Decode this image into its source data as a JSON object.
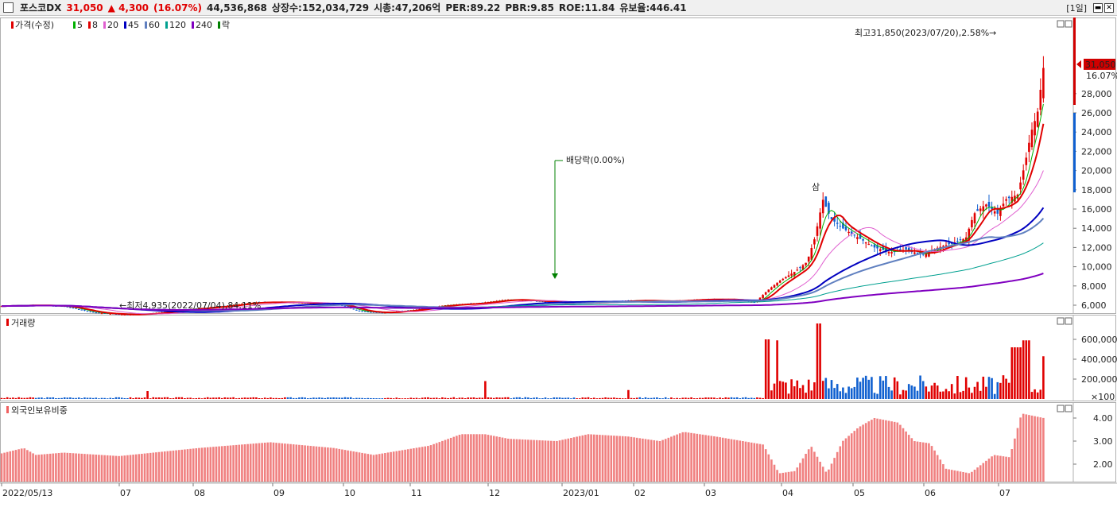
{
  "header": {
    "stock_name": "포스코DX",
    "price": "31,050",
    "change": "▲ 4,300",
    "change_pct": "(16.07%)",
    "volume": "44,536,868",
    "listed": "상장수:152,034,729",
    "mcap": "시총:47,206억",
    "per": "PER:89.22",
    "pbr": "PBR:9.85",
    "roe": "ROE:11.84",
    "float": "유보율:446.41",
    "period": "[1일]"
  },
  "price_panel": {
    "legend": [
      {
        "label": "가격(수정)",
        "color": "#e00000"
      },
      {
        "label": "5",
        "color": "#00b000"
      },
      {
        "label": "8",
        "color": "#e00000"
      },
      {
        "label": "20",
        "color": "#e060d0"
      },
      {
        "label": "45",
        "color": "#0000c0"
      },
      {
        "label": "60",
        "color": "#6080c0"
      },
      {
        "label": "120",
        "color": "#00a090"
      },
      {
        "label": "240",
        "color": "#8000c0"
      },
      {
        "label": "락",
        "color": "#008000"
      }
    ],
    "y_ticks": [
      "28,000",
      "26,000",
      "24,000",
      "22,000",
      "20,000",
      "18,000",
      "16,000",
      "14,000",
      "12,000",
      "10,000",
      "8,000",
      "6,000"
    ],
    "last_price_tag": "31,050",
    "last_pct_tag": "16.07%",
    "annotation_high": "최고31,850(2023/07/20),2.58%→",
    "annotation_low": "←최저4,935(2022/07/04),84.11%",
    "annotation_dividend": "배당락(0.00%)",
    "annotation_event": "삼"
  },
  "volume_panel": {
    "legend": "거래량",
    "y_ticks": [
      "600,000",
      "400,000",
      "200,000"
    ],
    "unit": "×100"
  },
  "foreign_panel": {
    "legend": "외국인보유비중",
    "y_ticks": [
      "4.00",
      "3.00",
      "2.00"
    ]
  },
  "x_axis": {
    "ticks": [
      "2022/05/13",
      "07",
      "08",
      "09",
      "10",
      "11",
      "12",
      "2023/01",
      "02",
      "03",
      "04",
      "05",
      "06",
      "07"
    ]
  },
  "chart_data": {
    "type": "candlestick",
    "price_range": [
      5000,
      32000
    ],
    "x_tick_labels": [
      "2022/05/13",
      "07",
      "08",
      "09",
      "10",
      "11",
      "12",
      "2023/01",
      "02",
      "03",
      "04",
      "05",
      "06",
      "07"
    ],
    "close_path_points": [
      [
        0,
        5900
      ],
      [
        40,
        6000
      ],
      [
        80,
        5900
      ],
      [
        120,
        5200
      ],
      [
        160,
        5000
      ],
      [
        200,
        5200
      ],
      [
        240,
        5600
      ],
      [
        280,
        5900
      ],
      [
        320,
        6300
      ],
      [
        360,
        6300
      ],
      [
        400,
        6200
      ],
      [
        430,
        6000
      ],
      [
        450,
        5400
      ],
      [
        480,
        5200
      ],
      [
        520,
        5500
      ],
      [
        560,
        6000
      ],
      [
        600,
        6200
      ],
      [
        640,
        6600
      ],
      [
        680,
        6400
      ],
      [
        720,
        6200
      ],
      [
        760,
        6300
      ],
      [
        800,
        6500
      ],
      [
        840,
        6400
      ],
      [
        880,
        6600
      ],
      [
        920,
        6600
      ],
      [
        950,
        6300
      ],
      [
        965,
        7500
      ],
      [
        980,
        8500
      ],
      [
        1000,
        9500
      ],
      [
        1015,
        10500
      ],
      [
        1025,
        13000
      ],
      [
        1035,
        17000
      ],
      [
        1045,
        15000
      ],
      [
        1060,
        14000
      ],
      [
        1080,
        13000
      ],
      [
        1100,
        12000
      ],
      [
        1120,
        11500
      ],
      [
        1140,
        11800
      ],
      [
        1160,
        11200
      ],
      [
        1180,
        12000
      ],
      [
        1200,
        12500
      ],
      [
        1215,
        13000
      ],
      [
        1225,
        15500
      ],
      [
        1240,
        16500
      ],
      [
        1255,
        15500
      ],
      [
        1265,
        17000
      ],
      [
        1280,
        17500
      ],
      [
        1290,
        21000
      ],
      [
        1297,
        24000
      ],
      [
        1305,
        26000
      ],
      [
        1313,
        31050
      ]
    ],
    "volume_peaks": [
      {
        "x": "2023/04",
        "value": 600000
      },
      {
        "x": "2023/04",
        "value": 760000
      },
      {
        "x": "2023/07",
        "value": 590000
      },
      {
        "x": "2023/07",
        "value": 430000
      }
    ],
    "foreign_ratio_range": [
      2.0,
      4.0
    ],
    "high": {
      "value": 31850,
      "date": "2023/07/20"
    },
    "low": {
      "value": 4935,
      "date": "2022/07/04"
    }
  }
}
